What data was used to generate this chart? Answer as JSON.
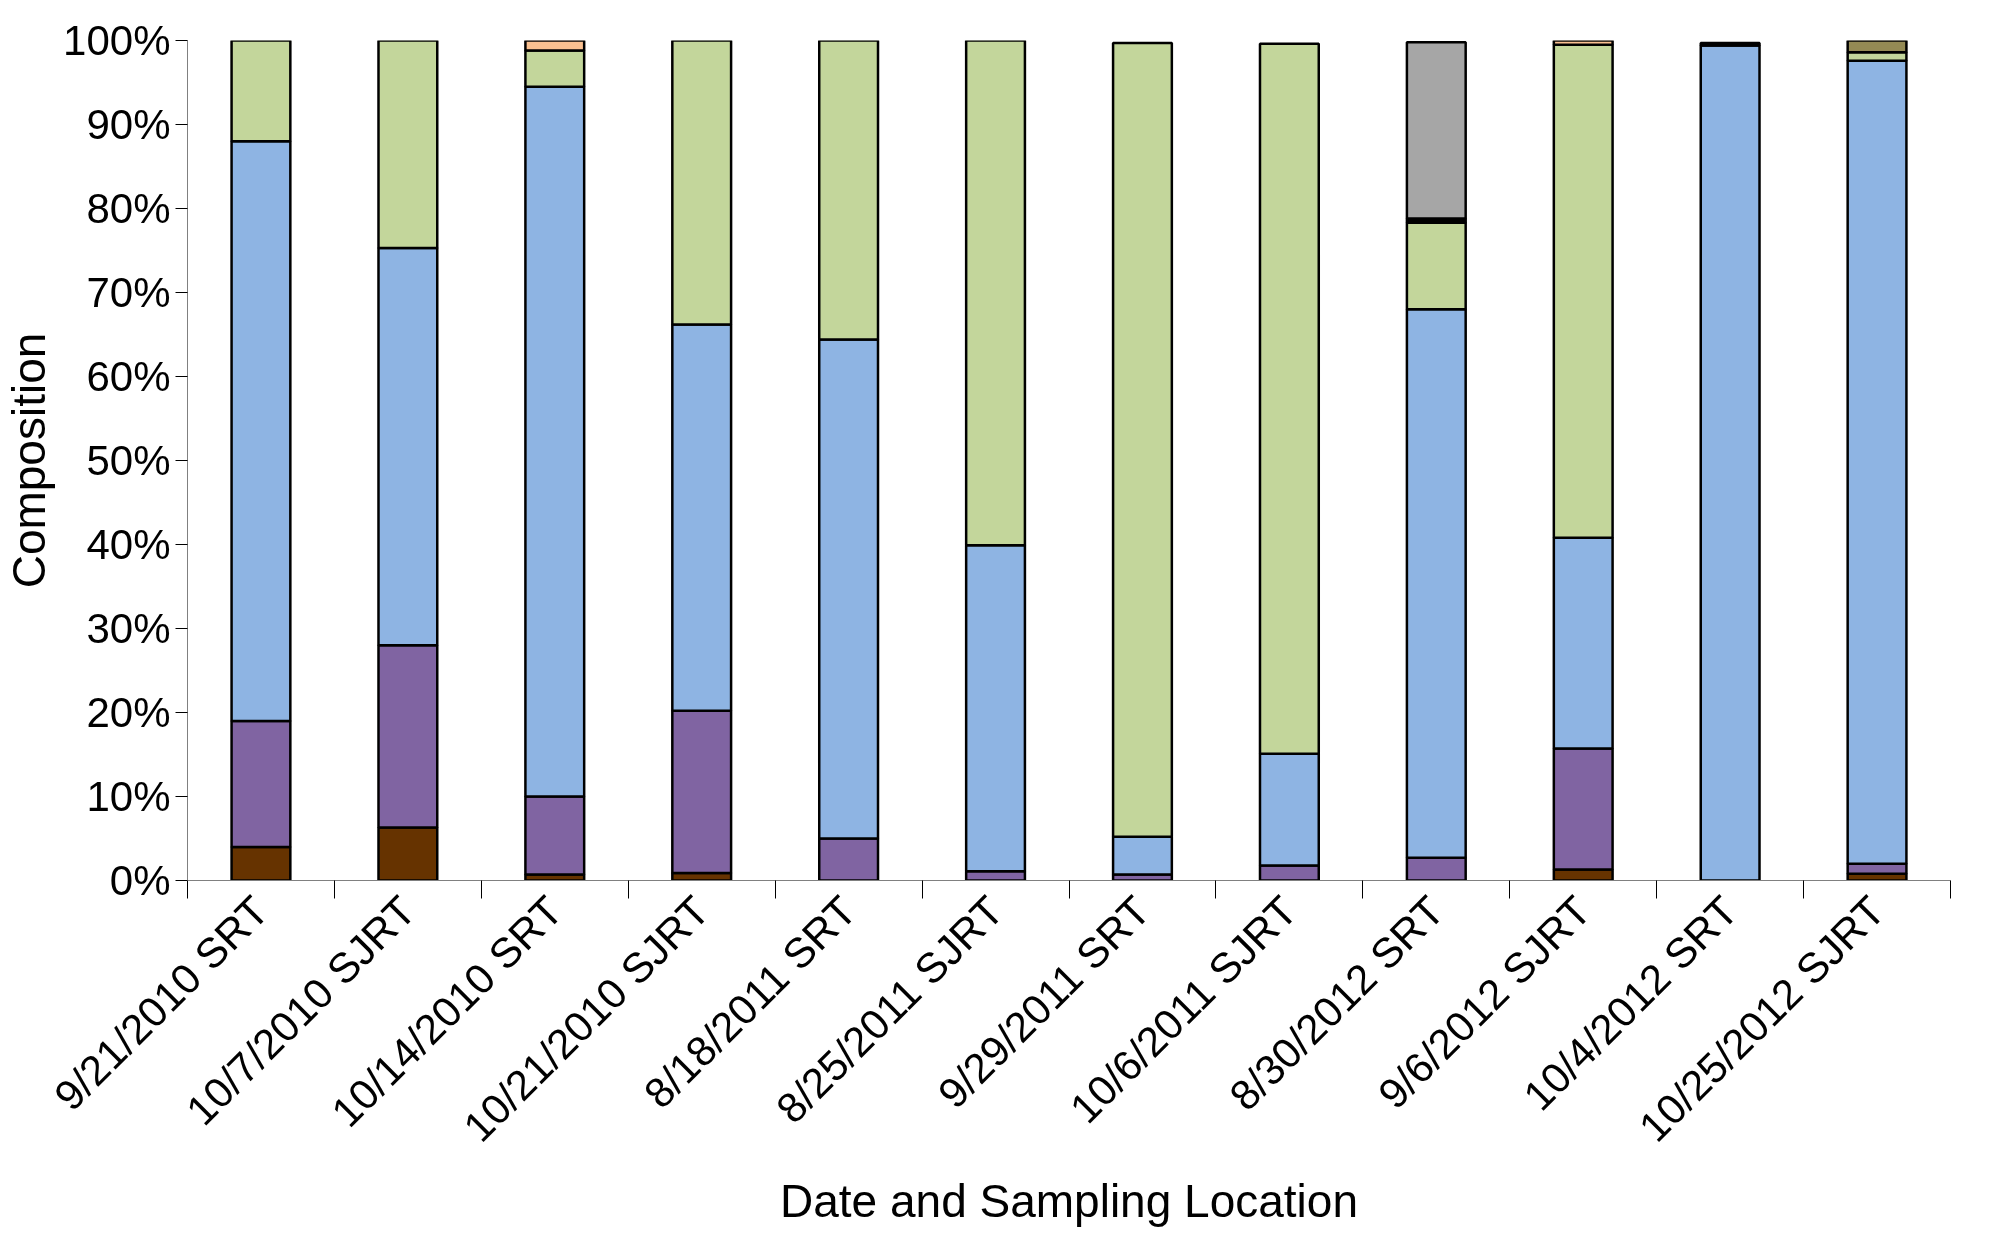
{
  "chart_data": {
    "type": "bar",
    "stacked": true,
    "xlabel": "Date and Sampling Location",
    "ylabel": "Composition",
    "categories": [
      "9/21/2010 SRT",
      "10/7/2010 SJRT",
      "10/14/2010 SRT",
      "10/21/2010 SJRT",
      "8/18/2011 SRT",
      "8/25/2011 SJRT",
      "9/29/2011 SRT",
      "10/6/2011 SJRT",
      "8/30/2012 SRT",
      "9/6/2012 SJRT",
      "10/4/2012 SRT",
      "10/25/2012 SJRT"
    ],
    "series": [
      {
        "color": "#663300",
        "values": [
          4,
          6.3,
          0.7,
          0.9,
          0,
          0,
          null,
          null,
          null,
          1.3,
          null,
          0.8
        ]
      },
      {
        "color": "#8064a2",
        "values": [
          15,
          21.7,
          9.3,
          19.3,
          5,
          1.1,
          0.7,
          1.8,
          2.7,
          14.4,
          0,
          1.2
        ]
      },
      {
        "color": "#8eb4e3",
        "values": [
          69,
          47.3,
          84.5,
          46,
          59.4,
          38.8,
          4.5,
          13.3,
          65.3,
          25.1,
          99.4,
          95.6
        ]
      },
      {
        "color": "#c3d69b",
        "values": [
          12,
          24.7,
          4.3,
          33.8,
          35.6,
          60.1,
          94.5,
          84.5,
          10.3,
          58.7,
          0.3,
          1.0
        ]
      },
      {
        "color": "#fac090",
        "values": [
          0,
          0,
          1.2,
          0,
          0,
          0,
          0,
          0,
          0,
          0.5,
          0,
          0
        ]
      },
      {
        "color": "#000000",
        "values": [
          0,
          0,
          0,
          0,
          0,
          0,
          0,
          0,
          0.5,
          0,
          0,
          0
        ]
      },
      {
        "color": "#a6a6a6",
        "values": [
          0,
          0,
          0,
          0,
          0,
          0,
          0,
          0,
          21,
          0,
          0,
          0
        ]
      },
      {
        "color": "#948a54",
        "values": [
          0,
          0,
          0,
          0,
          0,
          0,
          0,
          0,
          0,
          0,
          0,
          1.4
        ]
      }
    ],
    "ylim": [
      0,
      100
    ],
    "yticks": [
      {
        "value": 0,
        "label": "0%"
      },
      {
        "value": 10,
        "label": "10%"
      },
      {
        "value": 20,
        "label": "20%"
      },
      {
        "value": 30,
        "label": "30%"
      },
      {
        "value": 40,
        "label": "40%"
      },
      {
        "value": 50,
        "label": "50%"
      },
      {
        "value": 60,
        "label": "60%"
      },
      {
        "value": 70,
        "label": "70%"
      },
      {
        "value": 80,
        "label": "80%"
      },
      {
        "value": 90,
        "label": "90%"
      },
      {
        "value": 100,
        "label": "100%"
      }
    ],
    "grid": false
  }
}
